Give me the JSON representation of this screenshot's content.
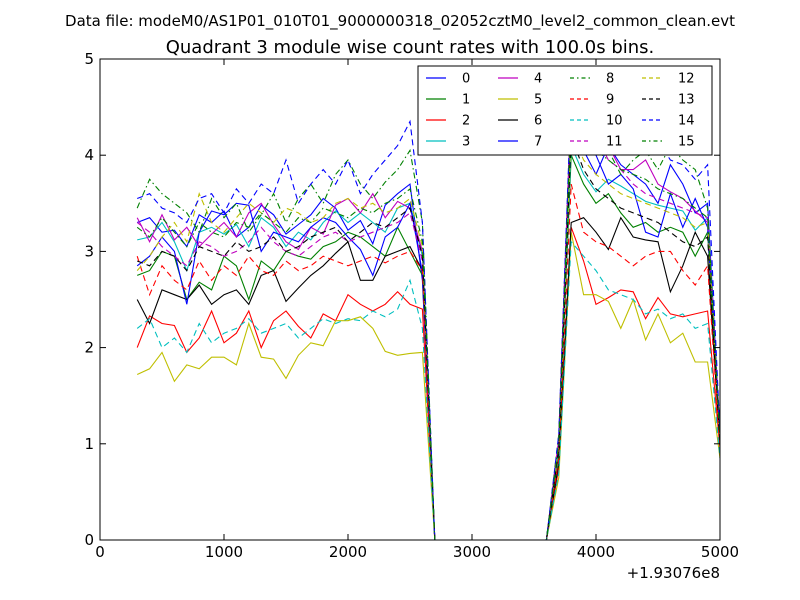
{
  "chart_data": {
    "type": "line",
    "suptitle": "Data file: modeM0/AS1P01_010T01_9000000318_02052cztM0_level2_common_clean.evt",
    "title": "Quadrant 3 module wise count rates with 100.0s bins.",
    "xlabel": "",
    "ylabel": "",
    "x_offset_label": "+1.93076e8",
    "xlim": [
      0,
      5000
    ],
    "ylim": [
      0,
      5
    ],
    "xticks": [
      0,
      1000,
      2000,
      3000,
      4000,
      5000
    ],
    "yticks": [
      0,
      1,
      2,
      3,
      4,
      5
    ],
    "legend_position": "top-right",
    "x": [
      300,
      400,
      500,
      600,
      700,
      800,
      900,
      1000,
      1100,
      1200,
      1300,
      1400,
      1500,
      1600,
      1700,
      1800,
      1900,
      2000,
      2100,
      2200,
      2300,
      2400,
      2500,
      2600,
      2700,
      2800,
      2900,
      3000,
      3100,
      3200,
      3300,
      3400,
      3500,
      3600,
      3700,
      3800,
      3900,
      4000,
      4100,
      4200,
      4300,
      4400,
      4500,
      4600,
      4700,
      4800,
      4900,
      5000
    ],
    "series": [
      {
        "name": "0",
        "color": "#0000ff",
        "dash": "solid",
        "values": [
          3.3,
          3.35,
          3.2,
          3.22,
          3.05,
          3.38,
          3.3,
          3.42,
          3.15,
          3.25,
          3.48,
          3.38,
          3.18,
          3.28,
          3.38,
          3.55,
          3.45,
          3.22,
          3.32,
          3.08,
          3.48,
          3.6,
          3.7,
          2.7,
          0,
          0,
          0,
          0,
          0,
          0,
          0,
          0,
          0,
          0,
          1.0,
          4.4,
          4.05,
          3.8,
          4.1,
          3.9,
          3.8,
          3.7,
          3.5,
          3.9,
          3.7,
          3.4,
          3.5,
          1.1
        ]
      },
      {
        "name": "1",
        "color": "#008000",
        "dash": "solid",
        "values": [
          2.75,
          2.8,
          3.0,
          2.95,
          2.5,
          2.68,
          2.6,
          2.95,
          2.85,
          2.5,
          2.9,
          2.8,
          3.0,
          2.95,
          2.92,
          3.05,
          3.1,
          3.2,
          3.15,
          3.05,
          2.95,
          3.25,
          3.0,
          2.75,
          0,
          0,
          0,
          0,
          0,
          0,
          0,
          0,
          0,
          0,
          0.9,
          4.0,
          3.7,
          3.5,
          3.6,
          3.4,
          3.25,
          3.3,
          3.2,
          3.25,
          3.2,
          2.95,
          3.2,
          1.0
        ]
      },
      {
        "name": "2",
        "color": "#ff0000",
        "dash": "solid",
        "values": [
          2.0,
          2.33,
          2.25,
          2.23,
          1.95,
          2.1,
          2.38,
          2.05,
          2.15,
          2.38,
          2.0,
          2.28,
          2.38,
          2.22,
          2.1,
          2.35,
          2.28,
          2.55,
          2.45,
          2.38,
          2.45,
          2.58,
          2.45,
          2.4,
          0,
          0,
          0,
          0,
          0,
          0,
          0,
          0,
          0,
          0,
          0.75,
          3.25,
          2.9,
          2.45,
          2.52,
          2.6,
          2.58,
          2.3,
          2.52,
          2.35,
          2.32,
          2.35,
          2.38,
          0.95
        ]
      },
      {
        "name": "3",
        "color": "#00bfbf",
        "dash": "solid",
        "values": [
          3.12,
          3.15,
          3.3,
          3.1,
          2.8,
          3.2,
          3.25,
          3.18,
          3.28,
          3.05,
          3.35,
          3.25,
          3.05,
          3.2,
          3.12,
          3.3,
          3.42,
          3.3,
          3.4,
          3.3,
          3.2,
          3.45,
          3.5,
          2.95,
          0,
          0,
          0,
          0,
          0,
          0,
          0,
          0,
          0,
          0,
          0.95,
          4.1,
          3.8,
          3.62,
          3.75,
          3.68,
          3.6,
          3.52,
          3.48,
          3.45,
          3.42,
          3.22,
          3.35,
          1.05
        ]
      },
      {
        "name": "4",
        "color": "#bf00bf",
        "dash": "solid",
        "values": [
          3.35,
          3.1,
          3.38,
          3.12,
          3.25,
          3.05,
          3.18,
          3.3,
          3.15,
          3.4,
          3.5,
          3.28,
          3.1,
          3.02,
          3.25,
          3.18,
          3.48,
          3.55,
          3.4,
          3.6,
          3.35,
          3.52,
          3.45,
          3.0,
          0,
          0,
          0,
          0,
          0,
          0,
          0,
          0,
          0,
          0,
          1.05,
          4.6,
          4.1,
          4.0,
          4.1,
          3.85,
          3.85,
          3.95,
          3.7,
          3.62,
          3.55,
          3.42,
          3.3,
          1.1
        ]
      },
      {
        "name": "5",
        "color": "#bfbf00",
        "dash": "solid",
        "values": [
          1.72,
          1.78,
          1.95,
          1.65,
          1.82,
          1.78,
          1.9,
          1.9,
          1.82,
          2.25,
          1.9,
          1.88,
          1.68,
          1.92,
          2.05,
          2.02,
          2.28,
          2.28,
          2.32,
          2.2,
          1.96,
          1.92,
          1.94,
          1.95,
          0,
          0,
          0,
          0,
          0,
          0,
          0,
          0,
          0,
          0,
          0.65,
          3.2,
          2.55,
          2.55,
          2.48,
          2.2,
          2.5,
          2.08,
          2.35,
          2.05,
          2.15,
          1.85,
          1.85,
          0.85
        ]
      },
      {
        "name": "6",
        "color": "#000000",
        "dash": "solid",
        "values": [
          2.5,
          2.25,
          2.6,
          2.55,
          2.5,
          2.65,
          2.45,
          2.55,
          2.6,
          2.45,
          2.75,
          2.8,
          2.48,
          2.62,
          2.75,
          2.85,
          2.98,
          3.1,
          2.7,
          2.7,
          2.95,
          3.0,
          3.05,
          2.8,
          0,
          0,
          0,
          0,
          0,
          0,
          0,
          0,
          0,
          0,
          0.8,
          3.3,
          3.35,
          3.2,
          3.02,
          3.35,
          3.15,
          3.12,
          3.1,
          2.58,
          2.85,
          3.2,
          2.95,
          1.0
        ]
      },
      {
        "name": "7",
        "color": "#0000ff",
        "dash": "solid",
        "values": [
          2.85,
          2.95,
          3.15,
          3.0,
          2.45,
          3.2,
          3.42,
          3.38,
          3.5,
          3.48,
          3.0,
          3.2,
          3.15,
          3.1,
          3.25,
          3.35,
          3.3,
          3.15,
          3.02,
          2.75,
          3.15,
          3.25,
          3.5,
          2.78,
          0,
          0,
          0,
          0,
          0,
          0,
          0,
          0,
          0,
          0,
          1.0,
          4.45,
          4.22,
          4.0,
          3.7,
          3.8,
          3.65,
          3.2,
          3.15,
          3.6,
          3.25,
          3.55,
          3.25,
          1.08
        ]
      },
      {
        "name": "8",
        "color": "#008000",
        "dash": "dashdot",
        "values": [
          3.45,
          3.75,
          3.6,
          3.5,
          3.4,
          3.2,
          3.55,
          3.35,
          3.5,
          3.2,
          3.38,
          3.6,
          3.3,
          3.55,
          3.7,
          3.5,
          3.8,
          3.95,
          3.7,
          3.55,
          3.72,
          3.85,
          4.05,
          3.3,
          0,
          0,
          0,
          0,
          0,
          0,
          0,
          0,
          0,
          0,
          1.1,
          4.6,
          4.25,
          4.15,
          4.05,
          3.8,
          3.95,
          4.05,
          3.85,
          4.1,
          3.95,
          3.85,
          3.45,
          1.1
        ]
      },
      {
        "name": "9",
        "color": "#ff0000",
        "dash": "dashed",
        "values": [
          2.95,
          2.55,
          2.85,
          2.7,
          2.6,
          2.9,
          2.7,
          2.85,
          2.75,
          2.95,
          2.8,
          2.75,
          2.9,
          2.8,
          2.85,
          2.95,
          2.9,
          2.85,
          2.9,
          2.95,
          2.88,
          2.95,
          3.0,
          2.8,
          0,
          0,
          0,
          0,
          0,
          0,
          0,
          0,
          0,
          0,
          0.85,
          3.7,
          3.2,
          3.1,
          3.05,
          2.95,
          2.85,
          2.95,
          3.0,
          3.0,
          2.8,
          2.65,
          2.85,
          0.95
        ]
      },
      {
        "name": "10",
        "color": "#00bfbf",
        "dash": "dashed",
        "values": [
          2.2,
          2.3,
          2.0,
          2.1,
          1.95,
          2.25,
          2.05,
          2.15,
          2.2,
          2.3,
          2.15,
          2.2,
          2.25,
          2.1,
          2.2,
          2.3,
          2.25,
          2.3,
          2.28,
          2.38,
          2.32,
          2.4,
          2.7,
          2.2,
          0,
          0,
          0,
          0,
          0,
          0,
          0,
          0,
          0,
          0,
          0.7,
          3.1,
          2.95,
          2.8,
          2.6,
          2.55,
          2.5,
          2.35,
          2.4,
          2.3,
          2.35,
          2.2,
          2.25,
          0.85
        ]
      },
      {
        "name": "11",
        "color": "#bf00bf",
        "dash": "dashed",
        "values": [
          3.3,
          3.2,
          3.05,
          2.95,
          2.85,
          3.1,
          3.05,
          2.95,
          3.0,
          3.1,
          3.25,
          3.1,
          3.0,
          2.95,
          3.05,
          3.15,
          3.2,
          3.1,
          3.15,
          3.2,
          3.25,
          3.3,
          3.4,
          2.9,
          0,
          0,
          0,
          0,
          0,
          0,
          0,
          0,
          0,
          0,
          1.05,
          4.55,
          4.4,
          4.2,
          3.95,
          3.85,
          3.7,
          3.6,
          3.55,
          3.5,
          3.45,
          3.4,
          3.35,
          1.05
        ]
      },
      {
        "name": "12",
        "color": "#bfbf00",
        "dash": "dashed",
        "values": [
          2.8,
          2.95,
          3.15,
          3.3,
          3.1,
          3.6,
          3.3,
          3.2,
          3.35,
          3.5,
          3.4,
          3.3,
          3.45,
          3.4,
          3.3,
          3.35,
          3.5,
          3.55,
          3.45,
          3.5,
          3.4,
          3.45,
          3.55,
          3.05,
          0,
          0,
          0,
          0,
          0,
          0,
          0,
          0,
          0,
          0,
          1.0,
          4.25,
          3.95,
          3.8,
          3.7,
          3.6,
          3.55,
          3.5,
          3.45,
          3.4,
          3.35,
          3.25,
          3.3,
          1.0
        ]
      },
      {
        "name": "13",
        "color": "#000000",
        "dash": "dashed",
        "values": [
          2.9,
          2.85,
          3.0,
          2.95,
          2.8,
          3.05,
          3.0,
          2.95,
          3.1,
          3.0,
          3.05,
          3.15,
          3.0,
          3.05,
          3.15,
          3.2,
          3.25,
          3.1,
          3.2,
          3.3,
          3.25,
          3.35,
          3.45,
          2.95,
          0,
          0,
          0,
          0,
          0,
          0,
          0,
          0,
          0,
          0,
          0.95,
          4.2,
          3.85,
          3.65,
          3.55,
          3.45,
          3.4,
          3.35,
          3.3,
          3.2,
          3.1,
          3.05,
          3.15,
          1.0
        ]
      },
      {
        "name": "14",
        "color": "#0000ff",
        "dash": "dashed",
        "values": [
          3.55,
          3.6,
          3.45,
          3.4,
          3.3,
          3.55,
          3.6,
          3.4,
          3.65,
          3.5,
          3.7,
          3.6,
          3.95,
          3.5,
          3.7,
          3.85,
          3.7,
          3.95,
          3.6,
          3.8,
          3.95,
          4.1,
          4.35,
          3.3,
          0,
          0,
          0,
          0,
          0,
          0,
          0,
          0,
          0,
          0,
          1.1,
          4.65,
          4.6,
          4.5,
          4.35,
          4.2,
          4.25,
          4.05,
          4.15,
          3.95,
          3.9,
          3.75,
          3.9,
          1.1
        ]
      },
      {
        "name": "15",
        "color": "#008000",
        "dash": "dashdot",
        "values": [
          3.25,
          3.15,
          3.35,
          3.2,
          3.05,
          3.3,
          3.2,
          3.15,
          3.3,
          3.25,
          3.4,
          3.3,
          3.2,
          3.35,
          3.3,
          3.45,
          3.4,
          3.35,
          3.45,
          3.4,
          3.5,
          3.55,
          3.65,
          3.1,
          0,
          0,
          0,
          0,
          0,
          0,
          0,
          0,
          0,
          0,
          1.0,
          4.45,
          4.2,
          4.05,
          3.95,
          3.85,
          3.8,
          3.75,
          3.65,
          3.6,
          3.55,
          3.45,
          3.35,
          1.05
        ]
      }
    ]
  }
}
